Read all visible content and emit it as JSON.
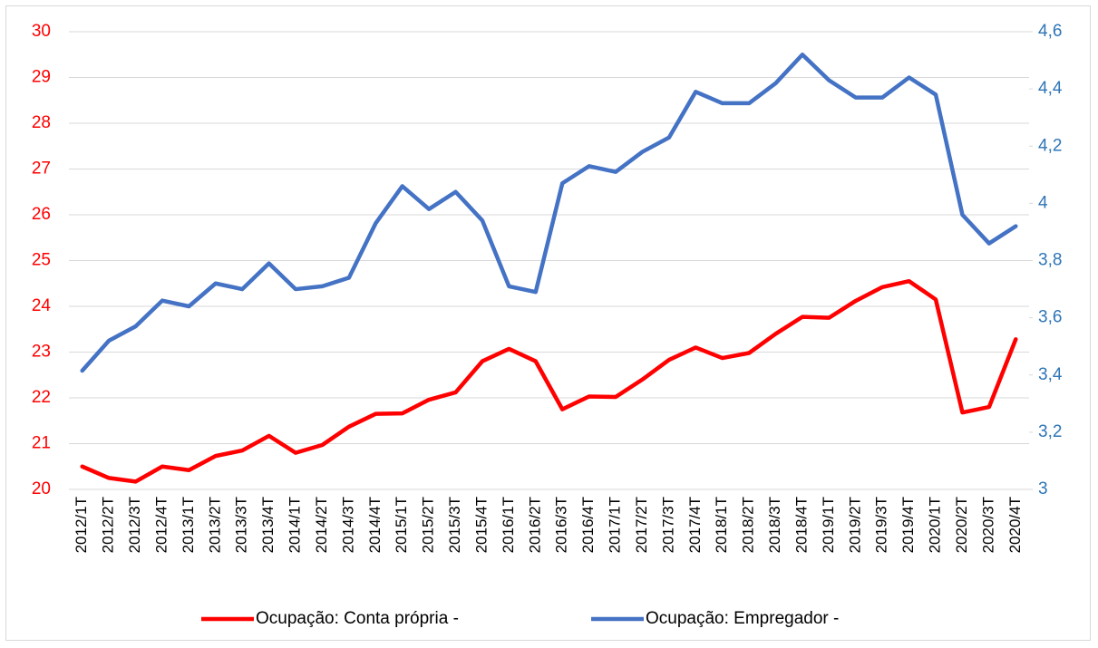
{
  "chart_data": {
    "type": "line",
    "categories": [
      "2012/1T",
      "2012/2T",
      "2012/3T",
      "2012/4T",
      "2013/1T",
      "2013/2T",
      "2013/3T",
      "2013/4T",
      "2014/1T",
      "2014/2T",
      "2014/3T",
      "2014/4T",
      "2015/1T",
      "2015/2T",
      "2015/3T",
      "2015/4T",
      "2016/1T",
      "2016/2T",
      "2016/3T",
      "2016/4T",
      "2017/1T",
      "2017/2T",
      "2017/3T",
      "2017/4T",
      "2018/1T",
      "2018/2T",
      "2018/3T",
      "2018/4T",
      "2019/1T",
      "2019/2T",
      "2019/3T",
      "2019/4T",
      "2020/1T",
      "2020/2T",
      "2020/3T",
      "2020/4T"
    ],
    "series": [
      {
        "name": "Ocupação: Conta própria -",
        "color": "#ff0000",
        "values": [
          20.5,
          20.25,
          20.17,
          20.5,
          20.42,
          20.73,
          20.85,
          21.17,
          20.8,
          20.97,
          21.37,
          21.65,
          21.66,
          21.96,
          22.12,
          22.8,
          23.07,
          22.8,
          21.75,
          22.03,
          22.02,
          22.4,
          22.83,
          23.1,
          22.87,
          22.98,
          23.4,
          23.77,
          23.75,
          24.12,
          24.42,
          24.55,
          24.15,
          21.68,
          21.8,
          23.28
        ]
      },
      {
        "name": "Ocupação: Empregador -",
        "color": "#4472c4",
        "axis": "y2",
        "values": [
          3.415,
          3.52,
          3.57,
          3.66,
          3.64,
          3.72,
          3.7,
          3.79,
          3.7,
          3.71,
          3.74,
          3.93,
          4.06,
          3.98,
          4.04,
          3.94,
          3.71,
          3.69,
          4.07,
          4.13,
          4.11,
          4.18,
          4.23,
          4.39,
          4.35,
          4.35,
          4.42,
          4.52,
          4.43,
          4.37,
          4.37,
          4.44,
          4.38,
          3.96,
          3.86,
          3.92
        ]
      }
    ],
    "ylim": [
      20,
      30
    ],
    "yticks": [
      20,
      21,
      22,
      23,
      24,
      25,
      26,
      27,
      28,
      29,
      30
    ],
    "ytick_color": "#ff0000",
    "y2lim": [
      3,
      4.6
    ],
    "y2ticks": [
      3,
      {
        "value": 3.2,
        "label": "3,2"
      },
      {
        "value": 3.4,
        "label": "3,4"
      },
      {
        "value": 3.6,
        "label": "3,6"
      },
      {
        "value": 3.8,
        "label": "3,8"
      },
      4,
      {
        "value": 4.2,
        "label": "4,2"
      },
      {
        "value": 4.4,
        "label": "4,4"
      },
      {
        "value": 4.6,
        "label": "4,6"
      }
    ],
    "y2tick_color": "#2e75b6",
    "grid": true,
    "legend": "bottom"
  }
}
